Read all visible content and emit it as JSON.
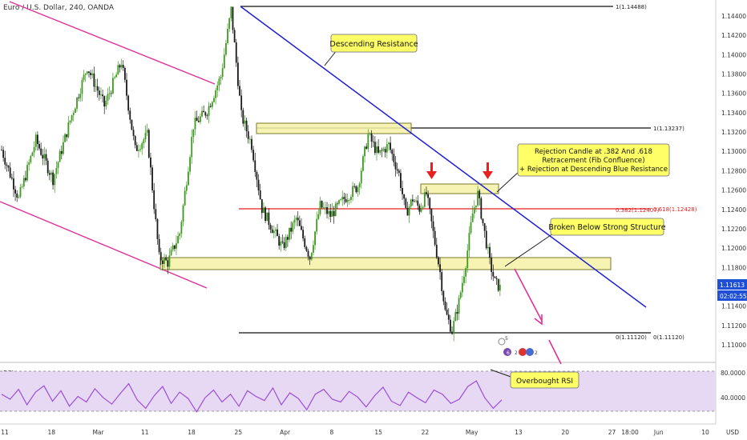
{
  "header": {
    "symbol_title": "Euro / U.S. Dollar, 240, OANDA"
  },
  "colors": {
    "up": "#3d9a1f",
    "down": "#1a1a1a",
    "resistance": "#1f1fd6",
    "channel": "#e0309a",
    "zone_fill": "#f6f2a6",
    "zone_stroke": "#7a7a30",
    "rsi_line": "#9c4fd6",
    "rsi_band": "#e7d8f4",
    "fib_red": "#e82020",
    "price_badge": "#1f4fd6",
    "callout": "#ffff66"
  },
  "chart_data": [
    {
      "type": "line",
      "name_visible": false,
      "x_ticks": [
        "11",
        "18",
        "Mar",
        "11",
        "18",
        "25",
        "Apr",
        "8",
        "15",
        "22",
        "May",
        "13",
        "20",
        "27",
        "Jun",
        "10"
      ],
      "y_ticks": [
        "1.14400",
        "1.14200",
        "1.14000",
        "1.13800",
        "1.13600",
        "1.13400",
        "1.13200",
        "1.13000",
        "1.12800",
        "1.12600",
        "1.12400",
        "1.12200",
        "1.12000",
        "1.11800",
        "1.11600",
        "1.11400",
        "1.11200",
        "1.11000"
      ],
      "ylim": [
        1.1088,
        1.1458
      ],
      "price_path": [
        [
          0,
          1.1305
        ],
        [
          10,
          1.1255
        ],
        [
          20,
          1.1315
        ],
        [
          30,
          1.1275
        ],
        [
          40,
          1.1335
        ],
        [
          50,
          1.139
        ],
        [
          60,
          1.135
        ],
        [
          70,
          1.1395
        ],
        [
          78,
          1.1305
        ],
        [
          85,
          1.132
        ],
        [
          92,
          1.1195
        ],
        [
          97,
          1.119
        ],
        [
          104,
          1.122
        ],
        [
          112,
          1.133
        ],
        [
          120,
          1.1345
        ],
        [
          128,
          1.138
        ],
        [
          134,
          1.1448
        ],
        [
          140,
          1.134
        ],
        [
          146,
          1.131
        ],
        [
          152,
          1.1245
        ],
        [
          158,
          1.1225
        ],
        [
          164,
          1.1205
        ],
        [
          172,
          1.1235
        ],
        [
          180,
          1.1195
        ],
        [
          186,
          1.1248
        ],
        [
          192,
          1.1238
        ],
        [
          200,
          1.1255
        ],
        [
          208,
          1.1268
        ],
        [
          214,
          1.132
        ],
        [
          220,
          1.13
        ],
        [
          226,
          1.131
        ],
        [
          232,
          1.128
        ],
        [
          236,
          1.124
        ],
        [
          240,
          1.1255
        ],
        [
          244,
          1.1245
        ],
        [
          248,
          1.126
        ],
        [
          252,
          1.122
        ],
        [
          256,
          1.118
        ],
        [
          259,
          1.114
        ],
        [
          263,
          1.112
        ],
        [
          267,
          1.115
        ],
        [
          271,
          1.119
        ],
        [
          275,
          1.124
        ],
        [
          278,
          1.126
        ],
        [
          281,
          1.123
        ],
        [
          285,
          1.119
        ],
        [
          288,
          1.117
        ],
        [
          292,
          1.1162
        ]
      ],
      "last_price": "1.11613",
      "countdown": "02:02:55",
      "fib_levels": [
        {
          "label": "1(1.14488)",
          "value": 1.14488
        },
        {
          "label": "1(1.13237)",
          "value": 1.13237
        },
        {
          "label": "0.382(1.12407)",
          "value": 1.12407
        },
        {
          "label": "0.618(1.12428)",
          "value": 1.12428
        },
        {
          "label": "0(1.11120)",
          "value": 1.1112
        },
        {
          "label": "0(1.11120)",
          "value": 1.1112
        }
      ],
      "zones": [
        {
          "from": 1.1186,
          "to": 1.1178
        },
        {
          "from": 1.133,
          "to": 1.1318
        },
        {
          "from": 1.1265,
          "to": 1.1257
        }
      ]
    },
    {
      "type": "line",
      "indicator": "RSI",
      "y_ticks": [
        "80.0000",
        "40.0000"
      ],
      "ylim": [
        15,
        98
      ],
      "band": [
        30,
        70
      ],
      "values": [
        55,
        48,
        62,
        40,
        58,
        67,
        45,
        60,
        38,
        52,
        44,
        63,
        50,
        41,
        56,
        70,
        47,
        35,
        53,
        66,
        42,
        58,
        49,
        30,
        50,
        61,
        44,
        55,
        38,
        60,
        52,
        46,
        64,
        40,
        57,
        49,
        33,
        55,
        62,
        48,
        44,
        59,
        51,
        37,
        53,
        65,
        45,
        39,
        58,
        50,
        43,
        61,
        55,
        42,
        48,
        66,
        74,
        50,
        35,
        47
      ]
    }
  ],
  "annotations": {
    "descending_resistance": "Descending Resistance",
    "rejection": [
      "Rejection Candle at .382 And .618",
      "Retracement (Fib Confluence)",
      "+ Rejection at Descending Blue Resistance"
    ],
    "broken_below": "Broken Below Strong Structure",
    "overbought": "Overbought RSI"
  },
  "rsi_label": "RSI",
  "corner_label": "USD",
  "x_axis_extra": "18:00",
  "event_badges": [
    "5",
    "6",
    "2",
    "2"
  ]
}
